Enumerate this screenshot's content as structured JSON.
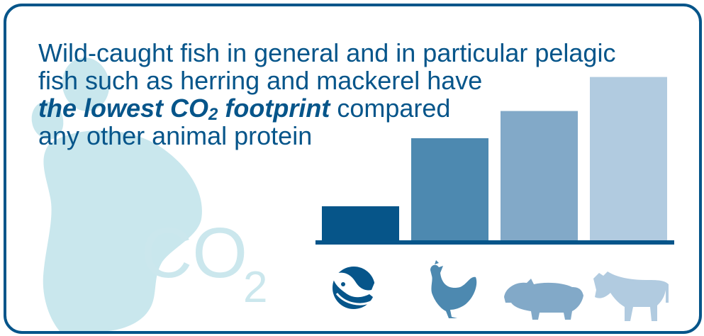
{
  "headline": {
    "line1": "Wild-caught fish in general and in particular pelagic",
    "line2": "fish such as herring and mackerel have",
    "emphasis_main": "the lowest CO",
    "emphasis_sub": "2",
    "emphasis_end": " footprint",
    "line3_rest": " compared",
    "line4": "any other animal protein"
  },
  "watermark": {
    "co": "CO",
    "sub": "2"
  },
  "chart_data": {
    "type": "bar",
    "categories": [
      "fish",
      "chicken",
      "pig",
      "cow"
    ],
    "values": [
      1,
      3,
      3.8,
      4.8
    ],
    "ylim": [
      0,
      5
    ],
    "colors": [
      "#065589",
      "#4d89b0",
      "#82a9c8",
      "#b1cbe0"
    ],
    "axis_color": "#06558a",
    "grid": false
  },
  "icons": [
    "fish-icon",
    "chicken-icon",
    "pig-icon",
    "cow-icon"
  ],
  "colors": {
    "brand": "#06558a",
    "footprint": "#c9e7ed"
  }
}
